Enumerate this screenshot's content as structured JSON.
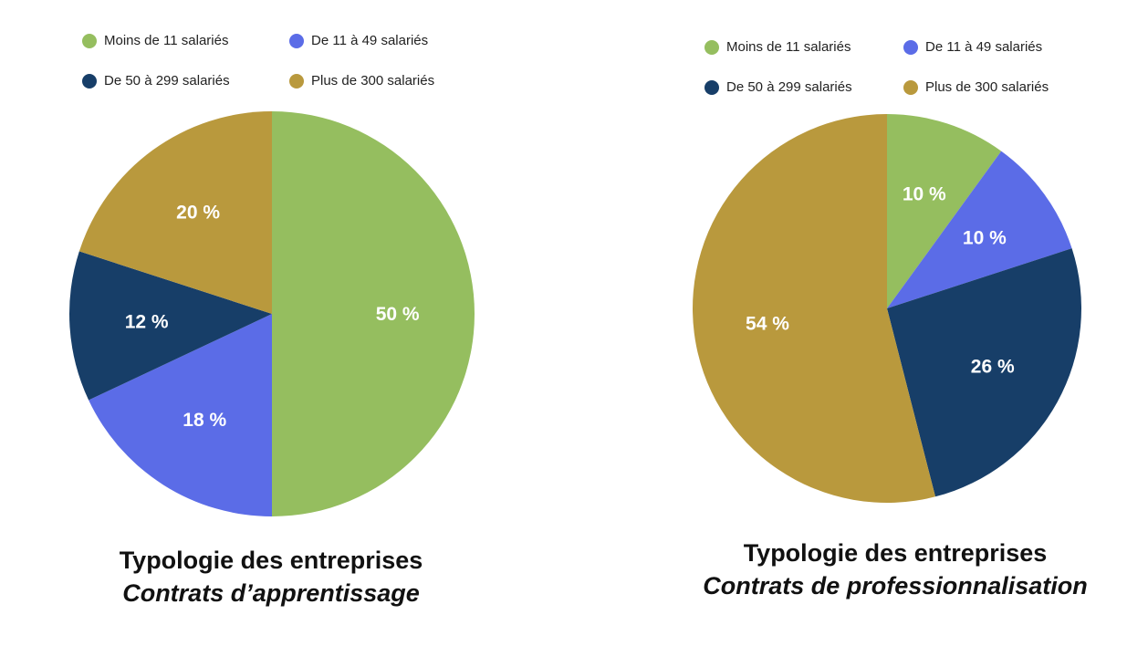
{
  "chart_data": [
    {
      "type": "pie",
      "title": "Typologie des entreprises",
      "subtitle": "Contrats d’apprentissage",
      "legend_position": "top",
      "slices": [
        {
          "label": "Moins de 11 salariés",
          "value": 50,
          "display": "50 %",
          "color": "#95BE5F"
        },
        {
          "label": "De 11 à 49 salariés",
          "value": 18,
          "display": "18 %",
          "color": "#5B6CE7"
        },
        {
          "label": "De 50 à 299 salariés",
          "value": 12,
          "display": "12 %",
          "color": "#173E68"
        },
        {
          "label": "Plus de 300 salariés",
          "value": 20,
          "display": "20 %",
          "color": "#B9993D"
        }
      ]
    },
    {
      "type": "pie",
      "title": "Typologie des entreprises",
      "subtitle": "Contrats de professionnalisation",
      "legend_position": "top",
      "slices": [
        {
          "label": "Moins de 11 salariés",
          "value": 10,
          "display": "10 %",
          "color": "#95BE5F"
        },
        {
          "label": "De 11 à 49 salariés",
          "value": 10,
          "display": "10 %",
          "color": "#5B6CE7"
        },
        {
          "label": "De 50 à 299 salariés",
          "value": 26,
          "display": "26 %",
          "color": "#173E68"
        },
        {
          "label": "Plus de 300 salariés",
          "value": 54,
          "display": "54 %",
          "color": "#B9993D"
        }
      ]
    }
  ]
}
